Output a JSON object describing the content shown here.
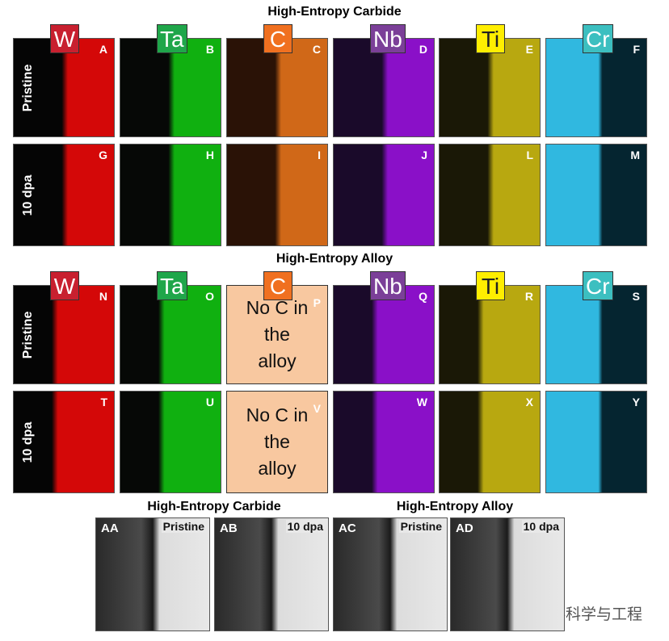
{
  "sections": [
    {
      "title": "High-Entropy Carbide",
      "elements": [
        "W",
        "Ta",
        "C",
        "Nb",
        "Ti",
        "Cr"
      ],
      "rows": [
        {
          "label": "Pristine",
          "panels": [
            "A",
            "B",
            "C",
            "D",
            "E",
            "F"
          ]
        },
        {
          "label": "10 dpa",
          "panels": [
            "G",
            "H",
            "I",
            "J",
            "L",
            "M"
          ]
        }
      ]
    },
    {
      "title": "High-Entropy Alloy",
      "elements": [
        "W",
        "Ta",
        "C",
        "Nb",
        "Ti",
        "Cr"
      ],
      "rows": [
        {
          "label": "Pristine",
          "panels": [
            "N",
            "O",
            "P",
            "Q",
            "R",
            "S"
          ]
        },
        {
          "label": "10 dpa",
          "panels": [
            "T",
            "U",
            "V",
            "W",
            "X",
            "Y"
          ]
        }
      ],
      "note": "No C in the alloy"
    }
  ],
  "bottom": {
    "groups": [
      {
        "title": "High-Entropy Carbide",
        "images": [
          {
            "letter": "AA",
            "label": "Pristine"
          },
          {
            "letter": "AB",
            "label": "10 dpa"
          }
        ]
      },
      {
        "title": "High-Entropy Alloy",
        "images": [
          {
            "letter": "AC",
            "label": "Pristine"
          },
          {
            "letter": "AD",
            "label": "10 dpa"
          }
        ]
      }
    ]
  },
  "watermark": "材料科学与工程"
}
